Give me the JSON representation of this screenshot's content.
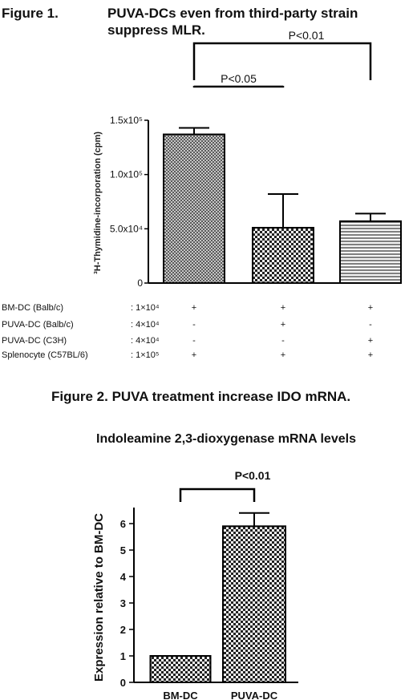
{
  "figure1": {
    "label": "Figure 1.",
    "title_line1": "PUVA-DCs even from third-party strain",
    "title_line2": "suppress MLR.",
    "chart_data": {
      "type": "bar",
      "ylabel": "³H-Thymidine-incorporation (cpm)",
      "ylim": [
        0,
        150000
      ],
      "yticks": [
        0,
        50000,
        100000,
        150000
      ],
      "ytick_labels": [
        "0",
        "5.0x10⁴",
        "1.0x10⁵",
        "1.5x10⁵"
      ],
      "values": [
        137000,
        51000,
        57000
      ],
      "errors": [
        6000,
        31000,
        7000
      ],
      "patterns": [
        "crosshatch",
        "checker",
        "stripes"
      ],
      "significance": [
        {
          "from": 0,
          "to": 1,
          "label": "P<0.05"
        },
        {
          "from": 0,
          "to": 2,
          "label": "P<0.01"
        }
      ],
      "conditions": [
        {
          "name": "BM-DC (Balb/c)",
          "dose": ": 1×10⁴",
          "marks": [
            "+",
            "+",
            "+"
          ]
        },
        {
          "name": "PUVA-DC (Balb/c)",
          "dose": ": 4×10⁴",
          "marks": [
            "-",
            "+",
            "-"
          ]
        },
        {
          "name": "PUVA-DC (C3H)",
          "dose": ": 4×10⁴",
          "marks": [
            "-",
            "-",
            "+"
          ]
        },
        {
          "name": "Splenocyte (C57BL/6)",
          "dose": ": 1×10⁵",
          "marks": [
            "+",
            "+",
            "+"
          ]
        }
      ]
    }
  },
  "figure2": {
    "title": "Figure 2.  PUVA treatment increase IDO mRNA.",
    "chart_data": {
      "type": "bar",
      "title": "Indoleamine 2,3-dioxygenase mRNA levels",
      "ylabel": "Expression relative to BM-DC",
      "categories": [
        "BM-DC",
        "PUVA-DC"
      ],
      "values": [
        1.0,
        5.9
      ],
      "errors": [
        0,
        0.5
      ],
      "ylim": [
        0,
        6.5
      ],
      "yticks": [
        0,
        1,
        2,
        3,
        4,
        5,
        6
      ],
      "patterns": [
        "checker",
        "checker"
      ],
      "significance": [
        {
          "from": 0,
          "to": 1,
          "label": "P<0.01"
        }
      ]
    }
  }
}
